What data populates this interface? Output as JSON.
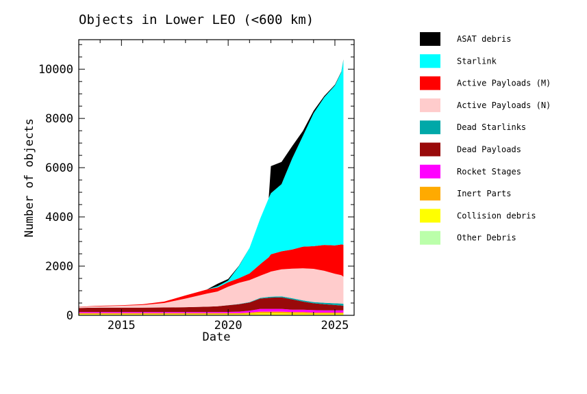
{
  "chart_data": {
    "type": "area",
    "stacked": true,
    "title": "Objects in Lower LEO (<600 km)",
    "xlabel": "Date",
    "ylabel": "Number of objects",
    "xlim": [
      2013.0,
      2025.9
    ],
    "ylim": [
      0,
      11200
    ],
    "x_ticks": [
      2015,
      2020,
      2025
    ],
    "y_ticks": [
      0,
      2000,
      4000,
      6000,
      8000,
      10000
    ],
    "legend_position": "right, outside plot",
    "x": [
      2013.0,
      2014.0,
      2015.0,
      2016.0,
      2017.0,
      2018.0,
      2019.0,
      2019.5,
      2020.0,
      2020.5,
      2021.0,
      2021.5,
      2021.9,
      2022.0,
      2022.5,
      2023.0,
      2023.5,
      2024.0,
      2024.5,
      2025.0,
      2025.3,
      2025.4
    ],
    "series": [
      {
        "name": "Other Debris",
        "color": "#bbffaa",
        "values": [
          20,
          20,
          20,
          20,
          20,
          20,
          20,
          20,
          20,
          20,
          20,
          20,
          20,
          20,
          20,
          20,
          20,
          20,
          20,
          20,
          20,
          20
        ]
      },
      {
        "name": "Collision debris",
        "color": "#ffff00",
        "values": [
          30,
          30,
          30,
          30,
          30,
          30,
          30,
          30,
          30,
          30,
          40,
          60,
          60,
          60,
          60,
          50,
          50,
          40,
          40,
          40,
          40,
          40
        ]
      },
      {
        "name": "Inert Parts",
        "color": "#ffaa00",
        "values": [
          40,
          40,
          40,
          40,
          40,
          40,
          40,
          40,
          40,
          40,
          50,
          70,
          70,
          70,
          70,
          60,
          60,
          50,
          50,
          50,
          50,
          50
        ]
      },
      {
        "name": "Rocket Stages",
        "color": "#ff00ff",
        "values": [
          40,
          40,
          40,
          40,
          40,
          40,
          40,
          40,
          50,
          60,
          80,
          110,
          110,
          110,
          110,
          100,
          100,
          100,
          90,
          90,
          90,
          90
        ]
      },
      {
        "name": "Dead Payloads",
        "color": "#990a0a",
        "values": [
          170,
          180,
          180,
          180,
          190,
          200,
          220,
          240,
          270,
          300,
          330,
          420,
          450,
          460,
          470,
          420,
          330,
          280,
          250,
          220,
          200,
          190
        ]
      },
      {
        "name": "Dead Starlinks",
        "color": "#00a8a8",
        "values": [
          0,
          0,
          0,
          0,
          0,
          0,
          0,
          0,
          5,
          10,
          20,
          30,
          40,
          40,
          40,
          45,
          50,
          50,
          60,
          70,
          80,
          80
        ]
      },
      {
        "name": "Active Payloads (N)",
        "color": "#ffcccc",
        "values": [
          40,
          60,
          80,
          110,
          180,
          350,
          530,
          600,
          750,
          860,
          890,
          900,
          990,
          1020,
          1100,
          1200,
          1300,
          1350,
          1300,
          1200,
          1150,
          1100
        ]
      },
      {
        "name": "Active Payloads (M)",
        "color": "#ff0000",
        "values": [
          10,
          20,
          20,
          30,
          60,
          130,
          170,
          160,
          180,
          190,
          270,
          470,
          620,
          700,
          730,
          780,
          880,
          920,
          1050,
          1150,
          1250,
          1300
        ]
      },
      {
        "name": "Starlink",
        "color": "#00ffff",
        "values": [
          0,
          0,
          0,
          0,
          0,
          0,
          0,
          50,
          70,
          480,
          1040,
          1850,
          2400,
          2480,
          2730,
          3700,
          4500,
          5400,
          6000,
          6500,
          7000,
          7500
        ]
      },
      {
        "name": "ASAT debris",
        "color": "#000000",
        "values": [
          0,
          0,
          0,
          0,
          0,
          0,
          0,
          100,
          60,
          20,
          0,
          0,
          0,
          1100,
          900,
          500,
          200,
          100,
          50,
          30,
          20,
          20
        ]
      }
    ]
  }
}
